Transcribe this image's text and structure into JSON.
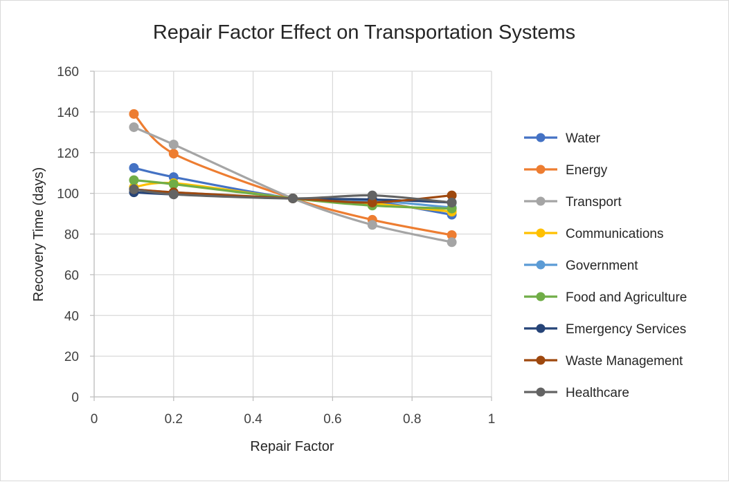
{
  "chart_data": {
    "type": "scatter",
    "title": "Repair Factor Effect on Transportation Systems",
    "xlabel": "Repair Factor",
    "ylabel": "Recovery Time (days)",
    "xlim": [
      0,
      1
    ],
    "ylim": [
      0,
      160
    ],
    "x_ticks": [
      "0",
      "0.2",
      "0.4",
      "0.6",
      "0.8",
      "1"
    ],
    "y_ticks": [
      "0",
      "20",
      "40",
      "60",
      "80",
      "100",
      "120",
      "140",
      "160"
    ],
    "x_tick_values": [
      0,
      0.2,
      0.4,
      0.6,
      0.8,
      1
    ],
    "y_tick_values": [
      0,
      20,
      40,
      60,
      80,
      100,
      120,
      140,
      160
    ],
    "grid": true,
    "smooth_lines": true,
    "legend_position": "right",
    "x": [
      0.1,
      0.2,
      0.5,
      0.7,
      0.9
    ],
    "series": [
      {
        "name": "Water",
        "color": "#4472C4",
        "values": [
          112.5,
          108,
          97.5,
          96,
          89.5
        ]
      },
      {
        "name": "Energy",
        "color": "#ED7D31",
        "values": [
          139,
          119.5,
          97.5,
          87,
          79.5
        ]
      },
      {
        "name": "Transport",
        "color": "#A5A5A5",
        "values": [
          132.5,
          124,
          97.5,
          84.5,
          76
        ]
      },
      {
        "name": "Communications",
        "color": "#FFC000",
        "values": [
          103,
          105,
          97.5,
          95,
          91
        ]
      },
      {
        "name": "Government",
        "color": "#5B9BD5",
        "values": [
          102,
          100.5,
          97.5,
          96.5,
          93
        ]
      },
      {
        "name": "Food and Agriculture",
        "color": "#70AD47",
        "values": [
          106.5,
          104.5,
          97.5,
          94,
          92.5
        ]
      },
      {
        "name": "Emergency Services",
        "color": "#264478",
        "values": [
          100.5,
          99.5,
          97.5,
          97,
          95.5
        ]
      },
      {
        "name": "Waste Management",
        "color": "#9E480E",
        "values": [
          102,
          100.5,
          97.5,
          95.5,
          99
        ]
      },
      {
        "name": "Healthcare",
        "color": "#636363",
        "values": [
          102,
          99.5,
          97.5,
          99,
          95.5
        ]
      }
    ]
  }
}
